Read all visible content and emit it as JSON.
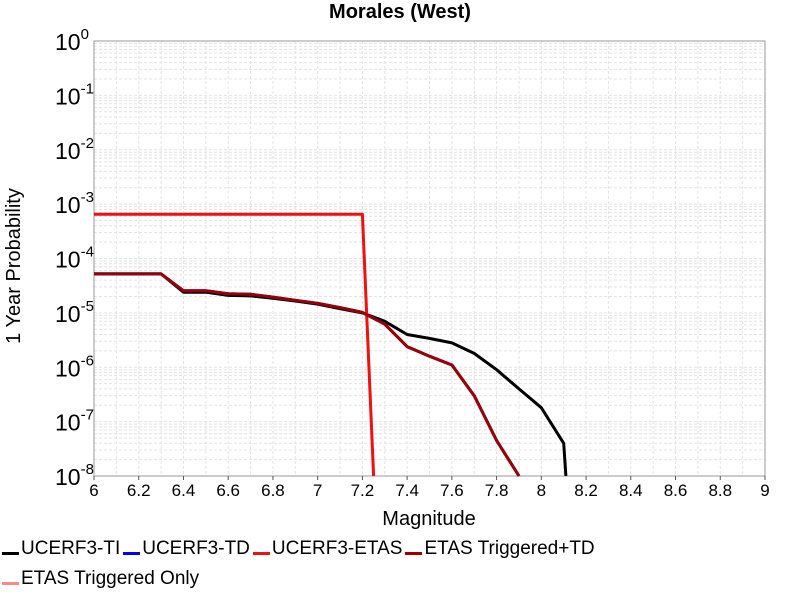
{
  "chart_data": {
    "type": "line",
    "title": "Morales (West)",
    "xlabel": "Magnitude",
    "ylabel": "1 Year Probability",
    "xlim": [
      6,
      9
    ],
    "ylim": [
      1e-08,
      1
    ],
    "yscale": "log",
    "grid": true,
    "legend_position": "bottom",
    "x_ticks": [
      "6",
      "6.2",
      "6.4",
      "6.6",
      "6.8",
      "7",
      "7.2",
      "7.4",
      "7.6",
      "7.8",
      "8",
      "8.2",
      "8.4",
      "8.6",
      "8.8",
      "9"
    ],
    "y_tick_exponents": [
      "0",
      "-1",
      "-2",
      "-3",
      "-4",
      "-5",
      "-6",
      "-7",
      "-8"
    ],
    "series": [
      {
        "name": "UCERF3-TI",
        "color": "#000000",
        "points": [
          [
            6.0,
            5.2e-05
          ],
          [
            6.1,
            5.2e-05
          ],
          [
            6.2,
            5.2e-05
          ],
          [
            6.3,
            5.2e-05
          ],
          [
            6.4,
            2.4e-05
          ],
          [
            6.5,
            2.4e-05
          ],
          [
            6.6,
            2.1e-05
          ],
          [
            6.7,
            2.05e-05
          ],
          [
            6.8,
            1.85e-05
          ],
          [
            6.9,
            1.65e-05
          ],
          [
            7.0,
            1.45e-05
          ],
          [
            7.1,
            1.2e-05
          ],
          [
            7.2,
            1e-05
          ],
          [
            7.3,
            7e-06
          ],
          [
            7.4,
            4e-06
          ],
          [
            7.5,
            3.4e-06
          ],
          [
            7.6,
            2.8e-06
          ],
          [
            7.7,
            1.8e-06
          ],
          [
            7.8,
            9e-07
          ],
          [
            7.9,
            4e-07
          ],
          [
            8.0,
            1.8e-07
          ],
          [
            8.1,
            4e-08
          ],
          [
            8.11,
            1e-08
          ]
        ]
      },
      {
        "name": "UCERF3-TD",
        "color": "#0000ee",
        "points": [
          [
            6.0,
            5.2e-05
          ],
          [
            6.1,
            5.2e-05
          ],
          [
            6.2,
            5.2e-05
          ],
          [
            6.3,
            5.2e-05
          ],
          [
            6.4,
            2.55e-05
          ],
          [
            6.5,
            2.55e-05
          ],
          [
            6.6,
            2.25e-05
          ],
          [
            6.7,
            2.2e-05
          ],
          [
            6.8,
            1.95e-05
          ],
          [
            6.9,
            1.7e-05
          ],
          [
            7.0,
            1.5e-05
          ],
          [
            7.1,
            1.25e-05
          ],
          [
            7.2,
            1.02e-05
          ],
          [
            7.3,
            6.2e-06
          ],
          [
            7.4,
            2.4e-06
          ],
          [
            7.5,
            1.6e-06
          ],
          [
            7.6,
            1.1e-06
          ],
          [
            7.7,
            3e-07
          ],
          [
            7.8,
            4.5e-08
          ],
          [
            7.9,
            1e-08
          ]
        ]
      },
      {
        "name": "UCERF3-ETAS",
        "color": "#ee1111",
        "points": [
          [
            6.0,
            0.00065
          ],
          [
            7.2,
            0.00065
          ],
          [
            7.25,
            1e-08
          ]
        ]
      },
      {
        "name": "ETAS Triggered+TD",
        "color": "#990000",
        "points": [
          [
            6.0,
            5.2e-05
          ],
          [
            6.1,
            5.2e-05
          ],
          [
            6.2,
            5.2e-05
          ],
          [
            6.3,
            5.2e-05
          ],
          [
            6.4,
            2.55e-05
          ],
          [
            6.5,
            2.55e-05
          ],
          [
            6.6,
            2.25e-05
          ],
          [
            6.7,
            2.2e-05
          ],
          [
            6.8,
            1.95e-05
          ],
          [
            6.9,
            1.7e-05
          ],
          [
            7.0,
            1.5e-05
          ],
          [
            7.1,
            1.25e-05
          ],
          [
            7.2,
            1.02e-05
          ],
          [
            7.3,
            6.2e-06
          ],
          [
            7.4,
            2.4e-06
          ],
          [
            7.5,
            1.6e-06
          ],
          [
            7.6,
            1.1e-06
          ],
          [
            7.7,
            3e-07
          ],
          [
            7.8,
            4.5e-08
          ],
          [
            7.9,
            1e-08
          ]
        ]
      },
      {
        "name": "ETAS Triggered Only",
        "color": "#ff8888",
        "points": []
      }
    ]
  }
}
